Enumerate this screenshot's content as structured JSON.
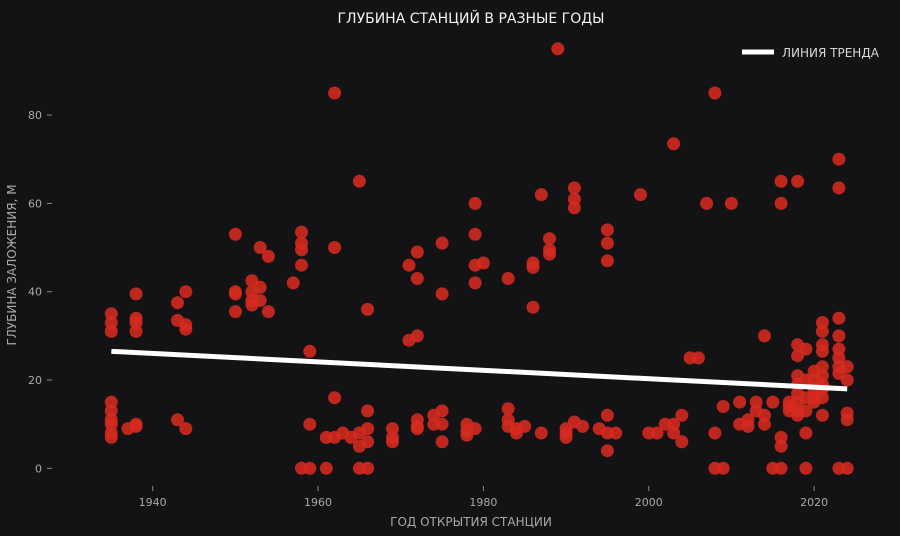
{
  "chart_data": {
    "type": "scatter",
    "title": "ГЛУБИНА СТАНЦИЙ В РАЗНЫЕ ГОДЫ",
    "xlabel": "ГОД ОТКРЫТИЯ СТАНЦИИ",
    "ylabel": "ГЛУБИНА ЗАЛОЖЕНИЯ, М",
    "xlim": [
      1930,
      2027
    ],
    "ylim": [
      -4,
      97
    ],
    "x_ticks": [
      1940,
      1960,
      1980,
      2000,
      2020
    ],
    "y_ticks": [
      0,
      20,
      40,
      60,
      80
    ],
    "grid": false,
    "legend": {
      "position": "top-right",
      "entries": [
        "ЛИНИЯ ТРЕНДА"
      ]
    },
    "colors": {
      "background": "#131316",
      "points": "#d62a1f",
      "trend": "#ffffff",
      "text": "#a8a8a8"
    },
    "series": [
      {
        "name": "",
        "points": [
          [
            1935,
            35
          ],
          [
            1935,
            33
          ],
          [
            1935,
            31
          ],
          [
            1935,
            15
          ],
          [
            1935,
            13
          ],
          [
            1935,
            11
          ],
          [
            1935,
            10
          ],
          [
            1935,
            8
          ],
          [
            1935,
            7
          ],
          [
            1937,
            9
          ],
          [
            1938,
            39.5
          ],
          [
            1938,
            34
          ],
          [
            1938,
            33
          ],
          [
            1938,
            31
          ],
          [
            1938,
            10
          ],
          [
            1938,
            9.5
          ],
          [
            1943,
            37.5
          ],
          [
            1943,
            33.5
          ],
          [
            1944,
            40
          ],
          [
            1944,
            32.5
          ],
          [
            1944,
            31.5
          ],
          [
            1943,
            11
          ],
          [
            1944,
            9
          ],
          [
            1950,
            53
          ],
          [
            1950,
            40
          ],
          [
            1950,
            39.5
          ],
          [
            1950,
            35.5
          ],
          [
            1952,
            42.5
          ],
          [
            1952,
            40
          ],
          [
            1952,
            38
          ],
          [
            1952,
            37
          ],
          [
            1953,
            50
          ],
          [
            1953,
            41
          ],
          [
            1953,
            38
          ],
          [
            1954,
            48
          ],
          [
            1954,
            35.5
          ],
          [
            1957,
            42
          ],
          [
            1958,
            53.5
          ],
          [
            1958,
            51
          ],
          [
            1958,
            49.5
          ],
          [
            1958,
            46
          ],
          [
            1958,
            0
          ],
          [
            1959,
            26.5
          ],
          [
            1959,
            10
          ],
          [
            1959,
            0
          ],
          [
            1961,
            7
          ],
          [
            1961,
            0
          ],
          [
            1962,
            85
          ],
          [
            1962,
            50
          ],
          [
            1962,
            16
          ],
          [
            1962,
            7
          ],
          [
            1963,
            8
          ],
          [
            1964,
            7
          ],
          [
            1965,
            65
          ],
          [
            1965,
            8
          ],
          [
            1965,
            5
          ],
          [
            1965,
            0
          ],
          [
            1966,
            36
          ],
          [
            1966,
            13
          ],
          [
            1966,
            9
          ],
          [
            1966,
            6
          ],
          [
            1966,
            0
          ],
          [
            1969,
            9
          ],
          [
            1969,
            7
          ],
          [
            1969,
            6
          ],
          [
            1971,
            46
          ],
          [
            1971,
            29
          ],
          [
            1972,
            49
          ],
          [
            1972,
            43
          ],
          [
            1972,
            30
          ],
          [
            1972,
            11
          ],
          [
            1972,
            9.5
          ],
          [
            1972,
            9
          ],
          [
            1974,
            12
          ],
          [
            1974,
            10
          ],
          [
            1975,
            51
          ],
          [
            1975,
            39.5
          ],
          [
            1975,
            13
          ],
          [
            1975,
            10
          ],
          [
            1975,
            6
          ],
          [
            1978,
            10
          ],
          [
            1978,
            8.5
          ],
          [
            1978,
            7.5
          ],
          [
            1979,
            60
          ],
          [
            1979,
            53
          ],
          [
            1979,
            46
          ],
          [
            1979,
            42
          ],
          [
            1979,
            9
          ],
          [
            1980,
            46.5
          ],
          [
            1983,
            43
          ],
          [
            1983,
            13.5
          ],
          [
            1983,
            11
          ],
          [
            1983,
            9.5
          ],
          [
            1984,
            9
          ],
          [
            1984,
            8
          ],
          [
            1985,
            9.5
          ],
          [
            1986,
            46.5
          ],
          [
            1986,
            45.5
          ],
          [
            1986,
            36.5
          ],
          [
            1987,
            62
          ],
          [
            1987,
            8
          ],
          [
            1988,
            52
          ],
          [
            1988,
            49.5
          ],
          [
            1988,
            48.5
          ],
          [
            1989,
            95
          ],
          [
            1990,
            9
          ],
          [
            1990,
            8
          ],
          [
            1990,
            7
          ],
          [
            1991,
            63.5
          ],
          [
            1991,
            61
          ],
          [
            1991,
            59
          ],
          [
            1991,
            10.5
          ],
          [
            1992,
            9.5
          ],
          [
            1994,
            9
          ],
          [
            1995,
            54
          ],
          [
            1995,
            51
          ],
          [
            1995,
            47
          ],
          [
            1995,
            12
          ],
          [
            1995,
            8
          ],
          [
            1995,
            4
          ],
          [
            1996,
            8
          ],
          [
            1999,
            62
          ],
          [
            2000,
            8
          ],
          [
            2001,
            8
          ],
          [
            2002,
            10
          ],
          [
            2003,
            73.5
          ],
          [
            2003,
            8
          ],
          [
            2003,
            10
          ],
          [
            2004,
            12
          ],
          [
            2004,
            6
          ],
          [
            2005,
            25
          ],
          [
            2006,
            25
          ],
          [
            2007,
            60
          ],
          [
            2008,
            85
          ],
          [
            2008,
            8
          ],
          [
            2008,
            0
          ],
          [
            2009,
            14
          ],
          [
            2009,
            0
          ],
          [
            2010,
            60
          ],
          [
            2011,
            15
          ],
          [
            2011,
            10
          ],
          [
            2012,
            11
          ],
          [
            2012,
            9.5
          ],
          [
            2013,
            15
          ],
          [
            2013,
            13
          ],
          [
            2014,
            30
          ],
          [
            2014,
            12
          ],
          [
            2014,
            10
          ],
          [
            2015,
            15
          ],
          [
            2015,
            0
          ],
          [
            2016,
            65
          ],
          [
            2016,
            60
          ],
          [
            2016,
            7
          ],
          [
            2016,
            5
          ],
          [
            2016,
            0
          ],
          [
            2017,
            15
          ],
          [
            2017,
            14
          ],
          [
            2017,
            13
          ],
          [
            2018,
            65
          ],
          [
            2018,
            28
          ],
          [
            2018,
            25.5
          ],
          [
            2018,
            21
          ],
          [
            2018,
            19
          ],
          [
            2018,
            17
          ],
          [
            2018,
            15
          ],
          [
            2018,
            13
          ],
          [
            2018,
            12
          ],
          [
            2019,
            27
          ],
          [
            2019,
            20
          ],
          [
            2019,
            16
          ],
          [
            2019,
            13
          ],
          [
            2019,
            8
          ],
          [
            2019,
            0
          ],
          [
            2020,
            22
          ],
          [
            2020,
            20
          ],
          [
            2020,
            18
          ],
          [
            2020,
            16
          ],
          [
            2020,
            15
          ],
          [
            2021,
            33
          ],
          [
            2021,
            31
          ],
          [
            2021,
            28
          ],
          [
            2021,
            26.5
          ],
          [
            2021,
            23
          ],
          [
            2021,
            21
          ],
          [
            2021,
            19
          ],
          [
            2021,
            18
          ],
          [
            2021,
            16
          ],
          [
            2021,
            12
          ],
          [
            2023,
            70
          ],
          [
            2023,
            63.5
          ],
          [
            2023,
            34
          ],
          [
            2023,
            30
          ],
          [
            2023,
            27
          ],
          [
            2023,
            25
          ],
          [
            2023,
            23
          ],
          [
            2023,
            21.5
          ],
          [
            2023,
            0
          ],
          [
            2024,
            23
          ],
          [
            2024,
            20
          ],
          [
            2024,
            12.5
          ],
          [
            2024,
            11
          ],
          [
            2024,
            0
          ]
        ]
      }
    ],
    "trend": {
      "name": "ЛИНИЯ ТРЕНДА",
      "x": [
        1935,
        2024
      ],
      "y": [
        26.5,
        18
      ]
    }
  }
}
